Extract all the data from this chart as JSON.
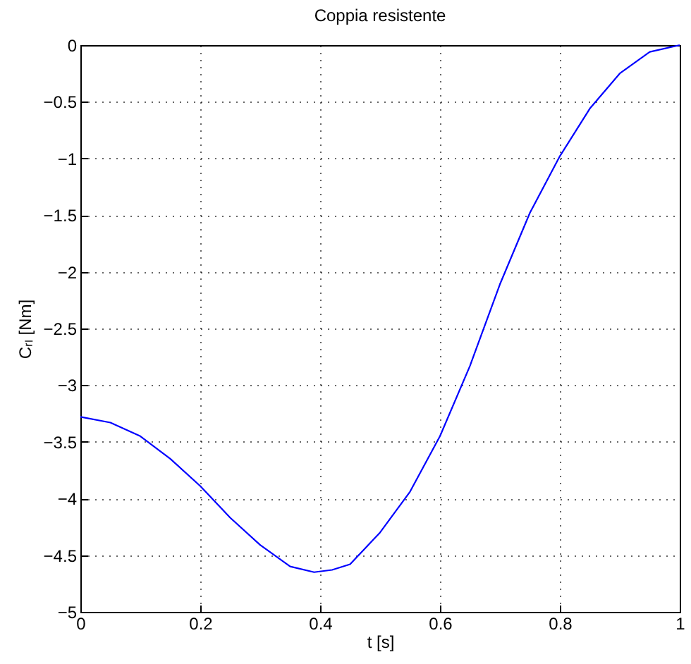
{
  "chart_data": {
    "type": "line",
    "title": "Coppia resistente",
    "xlabel": "t [s]",
    "ylabel": "Cᵣₗ [Nm]",
    "x": [
      0,
      0.05,
      0.1,
      0.15,
      0.2,
      0.25,
      0.3,
      0.35,
      0.39,
      0.42,
      0.45,
      0.5,
      0.55,
      0.6,
      0.65,
      0.7,
      0.75,
      0.8,
      0.85,
      0.9,
      0.95,
      1
    ],
    "series": [
      {
        "color": "#0000ff",
        "values": [
          -3.28,
          -3.33,
          -3.45,
          -3.65,
          -3.89,
          -4.17,
          -4.41,
          -4.6,
          -4.65,
          -4.63,
          -4.58,
          -4.3,
          -3.94,
          -3.45,
          -2.83,
          -2.11,
          -1.48,
          -0.98,
          -0.56,
          -0.25,
          -0.06,
          0
        ]
      }
    ],
    "xlim": [
      0,
      1
    ],
    "ylim": [
      -5,
      0
    ],
    "xticks": [
      0,
      0.2,
      0.4,
      0.6,
      0.8,
      1
    ],
    "yticks": [
      -5,
      -4.5,
      -4,
      -3.5,
      -3,
      -2.5,
      -2,
      -1.5,
      -1,
      -0.5,
      0
    ],
    "grid": true,
    "line_style": "solid",
    "marker": "none",
    "legend": false
  }
}
